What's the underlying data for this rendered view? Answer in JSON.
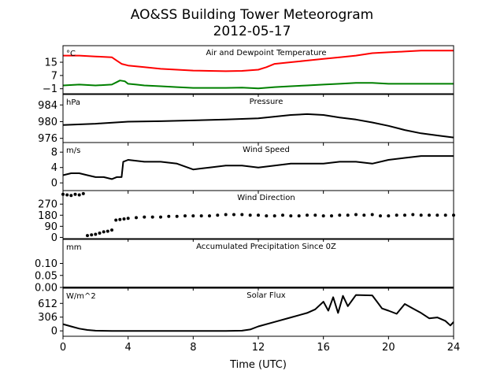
{
  "title_line1": "AO&SS Building Tower Meteorogram",
  "title_line2": "2012-05-17",
  "chart_data": [
    {
      "type": "line",
      "title": "Air and Dewpoint Temperature",
      "unit": "°C",
      "ylim": [
        -4,
        25
      ],
      "yticks": [
        -1,
        7,
        15
      ],
      "ytick_labels": [
        "−1",
        "7",
        "15"
      ],
      "series": [
        {
          "color": "#ff0000",
          "x": [
            0,
            1,
            2,
            3,
            3.3,
            3.6,
            4,
            5,
            6,
            7,
            8,
            9,
            10,
            11,
            12,
            12.5,
            13,
            14,
            15,
            16,
            17,
            18,
            19,
            20,
            21,
            22,
            23,
            24
          ],
          "values": [
            19,
            19,
            18.5,
            18,
            16,
            14,
            13,
            12,
            11,
            10.5,
            10,
            9.8,
            9.6,
            9.8,
            10.5,
            12,
            14,
            15,
            16,
            17,
            18,
            19,
            20.5,
            21,
            21.5,
            22,
            22,
            22
          ]
        },
        {
          "color": "#008000",
          "x": [
            0,
            1,
            2,
            3,
            3.3,
            3.5,
            3.8,
            4,
            4.5,
            5,
            6,
            7,
            8,
            9,
            10,
            11,
            12,
            13,
            14,
            15,
            16,
            17,
            18,
            19,
            20,
            21,
            22,
            23,
            24
          ],
          "values": [
            1,
            1.5,
            1,
            1.5,
            3,
            4,
            3.5,
            2,
            1.5,
            1,
            0.5,
            0,
            -0.5,
            -0.5,
            -0.5,
            -0.3,
            -0.8,
            0,
            0.5,
            1,
            1.5,
            2,
            2.5,
            2.5,
            2,
            2,
            2,
            2,
            2
          ]
        }
      ]
    },
    {
      "type": "line",
      "title": "Pressure",
      "unit": "hPa",
      "ylim": [
        975,
        986.5
      ],
      "yticks": [
        976,
        980,
        984
      ],
      "ytick_labels": [
        "976",
        "980",
        "984"
      ],
      "series": [
        {
          "color": "#000000",
          "x": [
            0,
            2,
            4,
            6,
            8,
            10,
            12,
            13,
            14,
            15,
            16,
            17,
            18,
            19,
            20,
            21,
            22,
            23,
            24
          ],
          "values": [
            979.2,
            979.5,
            980.0,
            980.1,
            980.3,
            980.5,
            980.8,
            981.2,
            981.6,
            981.8,
            981.6,
            981.0,
            980.5,
            979.8,
            979.0,
            978.0,
            977.2,
            976.7,
            976.2
          ]
        }
      ]
    },
    {
      "type": "line",
      "title": "Wind Speed",
      "unit": "m/s",
      "ylim": [
        -2,
        10.5
      ],
      "yticks": [
        0,
        4,
        8
      ],
      "ytick_labels": [
        "0",
        "4",
        "8"
      ],
      "series": [
        {
          "color": "#000000",
          "x": [
            0,
            0.5,
            1,
            1.5,
            2,
            2.5,
            3,
            3.3,
            3.6,
            3.7,
            4,
            5,
            6,
            7,
            8,
            9,
            10,
            11,
            12,
            13,
            14,
            15,
            16,
            17,
            18,
            19,
            20,
            21,
            22,
            23,
            24
          ],
          "values": [
            2,
            2.5,
            2.5,
            2,
            1.5,
            1.5,
            1,
            1.5,
            1.5,
            5.5,
            6,
            5.5,
            5.5,
            5,
            3.5,
            4,
            4.5,
            4.5,
            4,
            4.5,
            5,
            5,
            5,
            5.5,
            5.5,
            5,
            6,
            6.5,
            7,
            7,
            7
          ]
        }
      ]
    },
    {
      "type": "scatter",
      "title": "Wind Direction",
      "unit": "",
      "ylim": [
        -10,
        380
      ],
      "yticks": [
        0,
        90,
        180,
        270
      ],
      "ytick_labels": [
        "0",
        "90",
        "180",
        "270"
      ],
      "series": [
        {
          "color": "#000000",
          "x": [
            0,
            0.25,
            0.5,
            0.75,
            1.0,
            1.25,
            1.5,
            1.75,
            2.0,
            2.25,
            2.5,
            2.75,
            3.0,
            3.25,
            3.5,
            3.75,
            4.0,
            4.5,
            5.0,
            5.5,
            6.0,
            6.5,
            7.0,
            7.5,
            8.0,
            8.5,
            9.0,
            9.5,
            10.0,
            10.5,
            11.0,
            11.5,
            12.0,
            12.5,
            13.0,
            13.5,
            14.0,
            14.5,
            15.0,
            15.5,
            16.0,
            16.5,
            17.0,
            17.5,
            18.0,
            18.5,
            19.0,
            19.5,
            20.0,
            20.5,
            21.0,
            21.5,
            22.0,
            22.5,
            23.0,
            23.5,
            24.0
          ],
          "values": [
            350,
            345,
            340,
            350,
            345,
            355,
            15,
            20,
            25,
            35,
            45,
            50,
            60,
            140,
            145,
            150,
            155,
            160,
            165,
            165,
            165,
            170,
            170,
            175,
            175,
            175,
            175,
            180,
            185,
            185,
            185,
            180,
            180,
            175,
            175,
            180,
            175,
            175,
            180,
            180,
            175,
            175,
            180,
            180,
            185,
            180,
            185,
            175,
            175,
            180,
            180,
            185,
            180,
            180,
            180,
            180,
            180
          ]
        }
      ]
    },
    {
      "type": "line",
      "title": "Accumulated Precipitation Since 0Z",
      "unit": "mm",
      "ylim": [
        0,
        0.2
      ],
      "yticks": [
        0,
        0.05,
        0.1
      ],
      "ytick_labels": [
        "0.00",
        "0.05",
        "0.10"
      ],
      "series": [
        {
          "color": "#000000",
          "x": [
            0,
            24
          ],
          "values": [
            0,
            0
          ]
        }
      ]
    },
    {
      "type": "line",
      "title": "Solar Flux",
      "unit": "W/m^2",
      "ylim": [
        -120,
        950
      ],
      "yticks": [
        0,
        306,
        612
      ],
      "ytick_labels": [
        "0",
        "306",
        "612"
      ],
      "xlabel": "Time (UTC)",
      "xticks": [
        0,
        4,
        8,
        12,
        16,
        20,
        24
      ],
      "xtick_labels": [
        "0",
        "4",
        "8",
        "12",
        "16",
        "20",
        "24"
      ],
      "series": [
        {
          "color": "#000000",
          "x": [
            0,
            0.5,
            1,
            1.5,
            2,
            3,
            4,
            6,
            8,
            10,
            11,
            11.5,
            12,
            13,
            14,
            15,
            15.5,
            16,
            16.3,
            16.6,
            16.9,
            17.2,
            17.5,
            18,
            19,
            19.4,
            19.6,
            20,
            20.5,
            21,
            21.5,
            22,
            22.5,
            23,
            23.5,
            23.8,
            24
          ],
          "values": [
            150,
            100,
            50,
            20,
            5,
            0,
            0,
            0,
            0,
            0,
            5,
            30,
            100,
            200,
            300,
            400,
            480,
            650,
            450,
            750,
            400,
            780,
            550,
            800,
            790,
            600,
            500,
            450,
            380,
            600,
            500,
            400,
            280,
            300,
            220,
            120,
            200
          ]
        }
      ]
    }
  ]
}
